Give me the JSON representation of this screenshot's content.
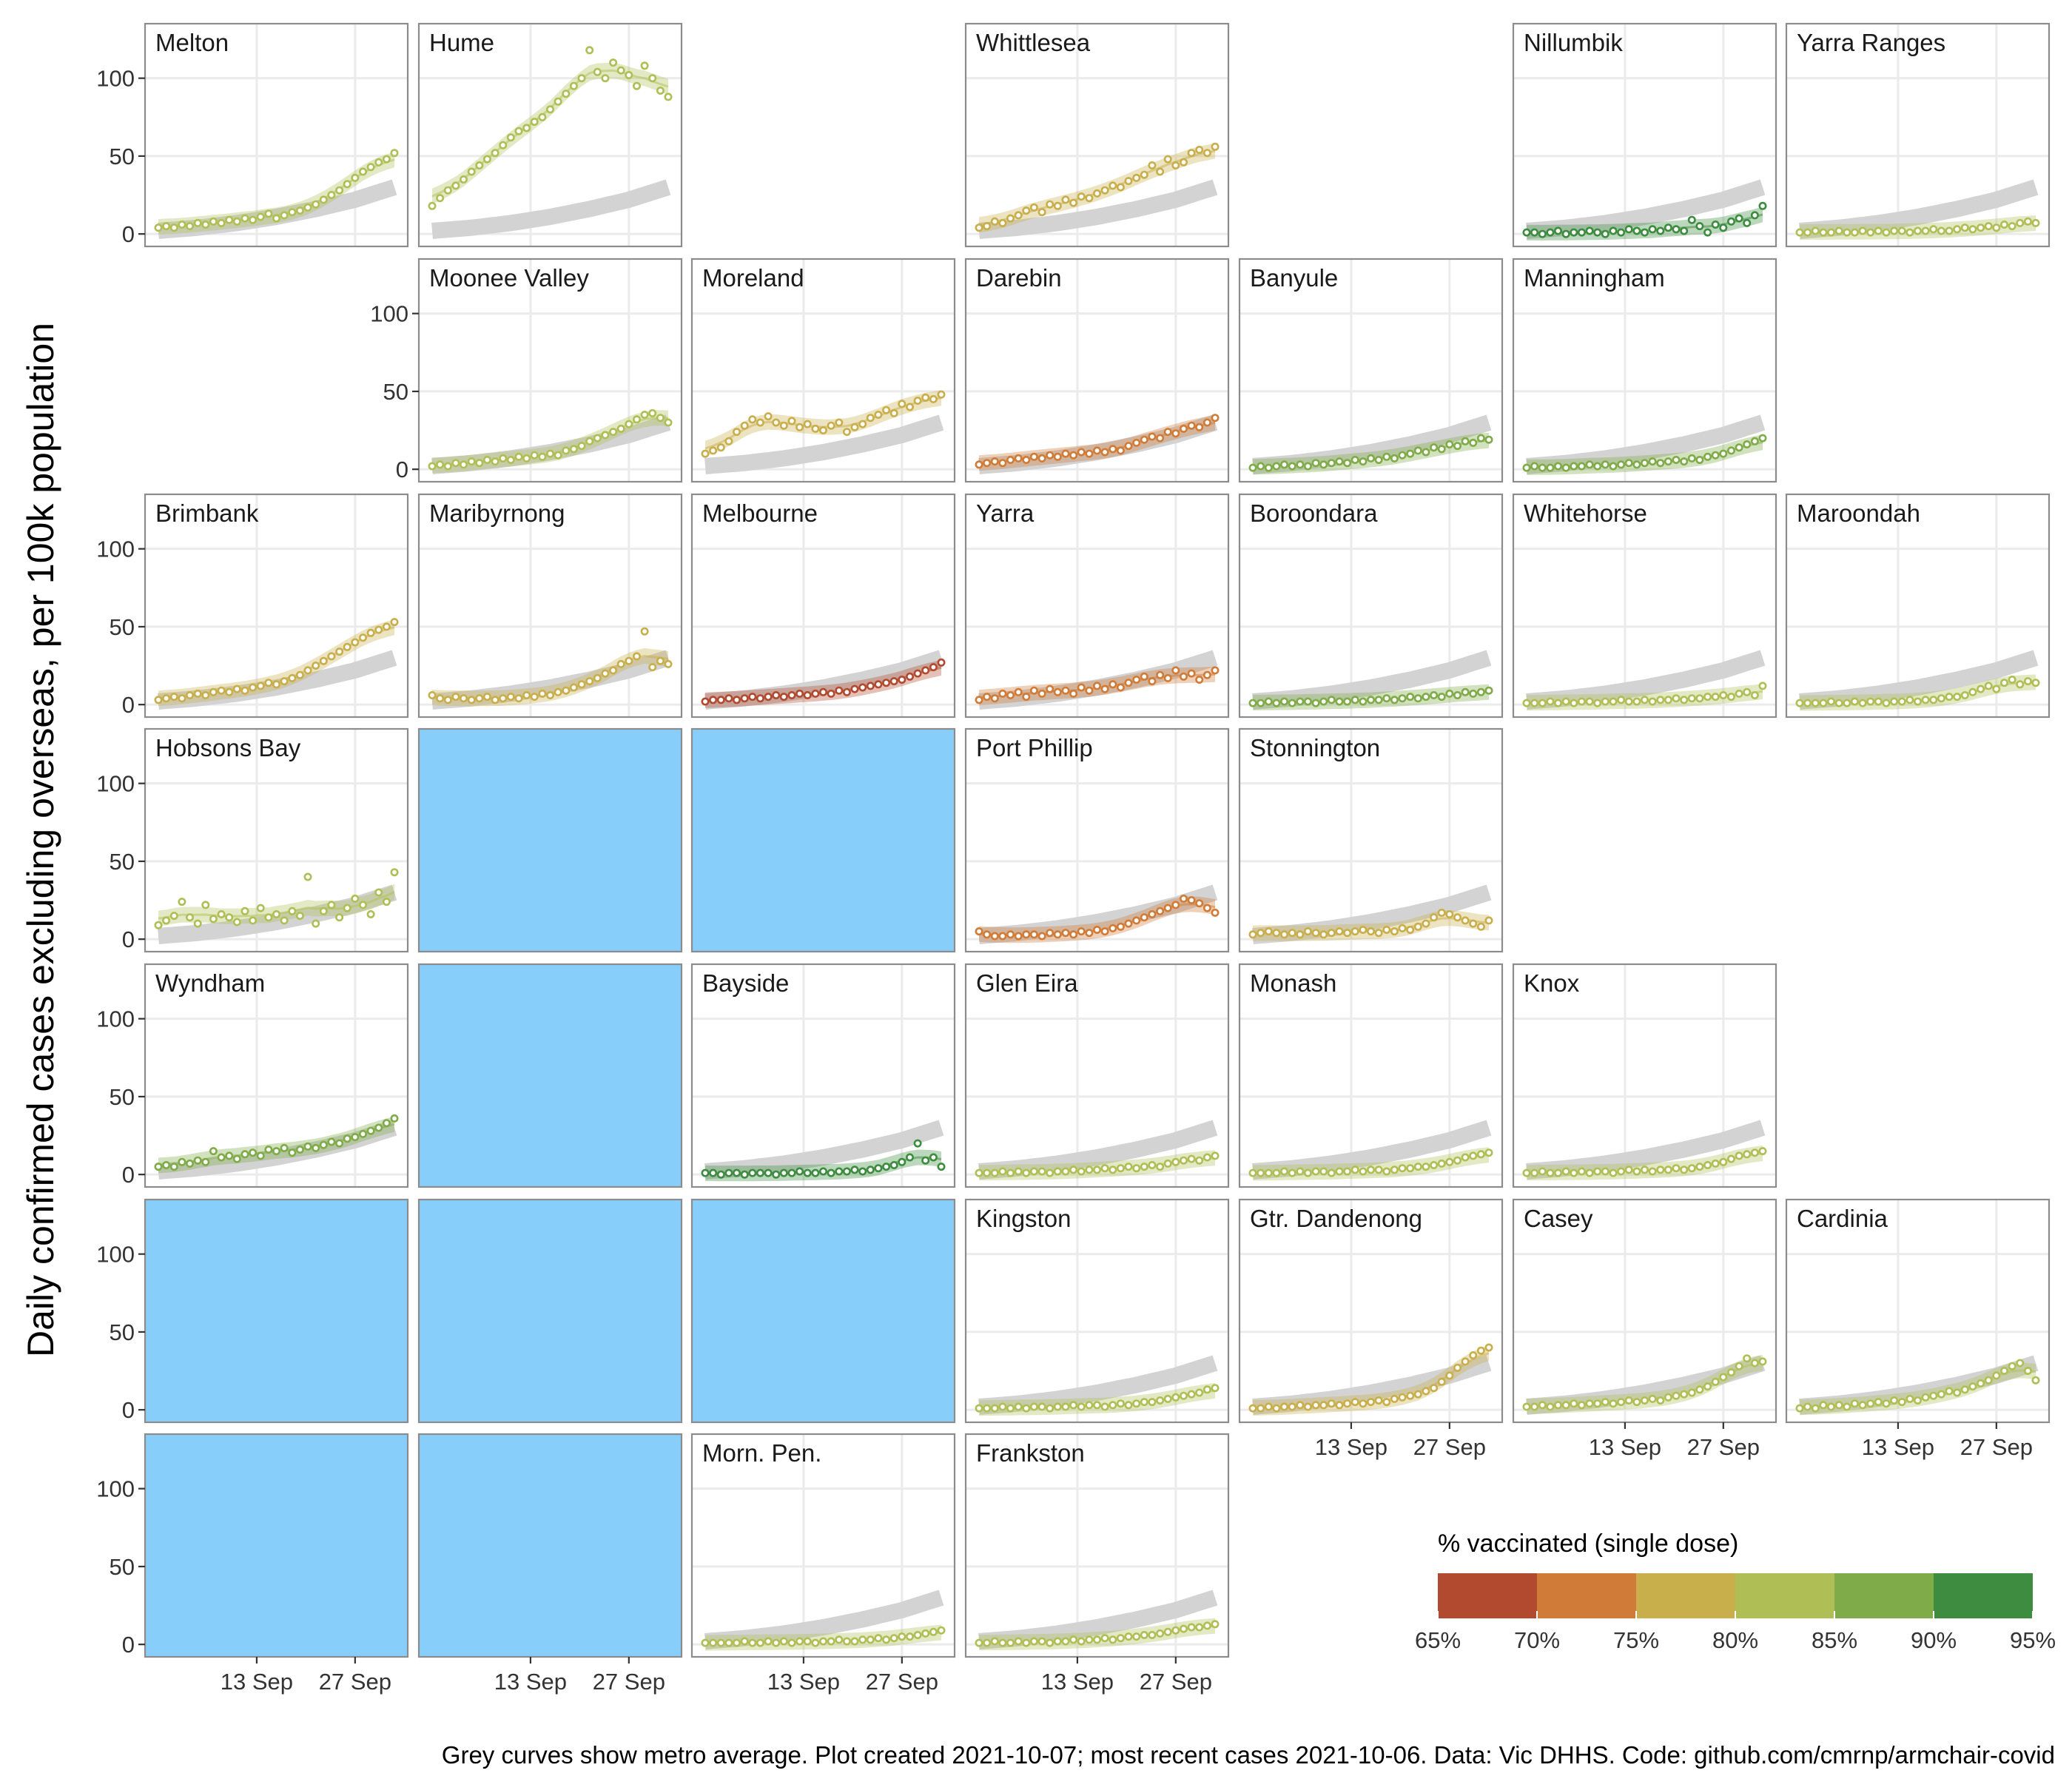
{
  "y_axis_title": "Daily confirmed cases excluding overseas, per 100k population",
  "caption": "Grey curves show metro average. Plot created 2021-10-07; most recent cases 2021-10-06. Data: Vic DHHS. Code: github.com/cmrnp/armchair-covid",
  "colors": {
    "panel_border": "#8c8c8c",
    "grid": "#ebebeb",
    "metro_curve": "#d3d3d3",
    "empty_tile": "#87cefa",
    "axis_text": "#333333"
  },
  "legend": {
    "title": "% vaccinated (single dose)",
    "breaks": [
      "65%",
      "70%",
      "75%",
      "80%",
      "85%",
      "90%",
      "95%"
    ],
    "colors": [
      "#b24a30",
      "#d07c38",
      "#c9ae4c",
      "#afbf55",
      "#7fab48",
      "#3d8c40"
    ]
  },
  "chart_data": {
    "type": "scatter",
    "layout": "geofacet small multiples with LOESS smooth per panel",
    "xlabel": "",
    "ylabel": "Daily confirmed cases excluding overseas, per 100k population",
    "x_ticks": [
      "13 Sep",
      "27 Sep"
    ],
    "y_ticks": [
      0,
      50,
      100
    ],
    "ylim": [
      0,
      135
    ],
    "xlim": [
      "2021-08-30",
      "2021-10-06"
    ],
    "grid": true,
    "metro_average": [
      2,
      4,
      7,
      11,
      16,
      22,
      30
    ],
    "panels": [
      {
        "name": "Melton",
        "row": 0,
        "col": 0,
        "color": "#afbf55",
        "values": [
          4,
          5,
          4,
          6,
          5,
          7,
          6,
          8,
          7,
          9,
          8,
          10,
          9,
          11,
          13,
          10,
          12,
          14,
          15,
          17,
          19,
          22,
          25,
          28,
          32,
          36,
          40,
          43,
          46,
          48,
          52
        ]
      },
      {
        "name": "Hume",
        "row": 0,
        "col": 1,
        "color": "#afbf55",
        "values": [
          18,
          23,
          28,
          31,
          35,
          40,
          44,
          48,
          52,
          57,
          62,
          66,
          68,
          72,
          75,
          80,
          85,
          90,
          95,
          100,
          118,
          104,
          100,
          110,
          105,
          102,
          95,
          108,
          100,
          92,
          88
        ]
      },
      {
        "name": "Whittlesea",
        "row": 0,
        "col": 3,
        "color": "#c9ae4c",
        "values": [
          4,
          5,
          8,
          7,
          10,
          12,
          15,
          17,
          14,
          19,
          18,
          22,
          20,
          24,
          23,
          26,
          28,
          31,
          30,
          34,
          36,
          38,
          44,
          40,
          48,
          44,
          46,
          52,
          54,
          52,
          56
        ]
      },
      {
        "name": "Nillumbik",
        "row": 0,
        "col": 5,
        "color": "#3d8c40",
        "values": [
          1,
          1,
          0,
          1,
          2,
          0,
          1,
          1,
          2,
          1,
          0,
          2,
          1,
          3,
          2,
          1,
          3,
          2,
          4,
          3,
          2,
          9,
          5,
          1,
          6,
          4,
          8,
          10,
          7,
          12,
          18
        ]
      },
      {
        "name": "Yarra Ranges",
        "row": 0,
        "col": 6,
        "color": "#afbf55",
        "values": [
          1,
          1,
          2,
          1,
          1,
          2,
          1,
          1,
          2,
          1,
          2,
          1,
          2,
          2,
          1,
          2,
          2,
          3,
          2,
          2,
          3,
          4,
          3,
          4,
          5,
          4,
          6,
          5,
          7,
          8,
          7
        ]
      },
      {
        "name": "Moonee Valley",
        "row": 1,
        "col": 1,
        "color": "#afbf55",
        "values": [
          2,
          3,
          2,
          4,
          3,
          5,
          4,
          6,
          5,
          7,
          6,
          8,
          7,
          9,
          8,
          10,
          9,
          12,
          13,
          15,
          18,
          20,
          22,
          24,
          26,
          29,
          32,
          35,
          36,
          33,
          30
        ]
      },
      {
        "name": "Moreland",
        "row": 1,
        "col": 2,
        "color": "#c9ae4c",
        "values": [
          10,
          12,
          14,
          18,
          24,
          28,
          32,
          30,
          34,
          30,
          28,
          31,
          27,
          29,
          26,
          25,
          28,
          30,
          24,
          27,
          29,
          33,
          35,
          38,
          36,
          42,
          40,
          44,
          46,
          45,
          48
        ]
      },
      {
        "name": "Darebin",
        "row": 1,
        "col": 3,
        "color": "#d07c38",
        "values": [
          3,
          4,
          5,
          4,
          6,
          7,
          6,
          8,
          7,
          9,
          8,
          10,
          9,
          11,
          10,
          12,
          11,
          13,
          12,
          15,
          17,
          19,
          21,
          20,
          24,
          23,
          26,
          28,
          27,
          30,
          33
        ]
      },
      {
        "name": "Banyule",
        "row": 2,
        "col": 4,
        "color": "#7fab48",
        "values": [
          1,
          2,
          1,
          2,
          3,
          2,
          3,
          2,
          4,
          3,
          4,
          5,
          4,
          6,
          5,
          7,
          6,
          8,
          7,
          9,
          10,
          12,
          11,
          14,
          13,
          16,
          15,
          18,
          17,
          20,
          19
        ],
        "row_offset": -1
      },
      {
        "name": "Manningham",
        "row": 1,
        "col": 5,
        "color": "#7fab48",
        "values": [
          1,
          2,
          1,
          1,
          2,
          1,
          2,
          2,
          3,
          2,
          3,
          2,
          3,
          4,
          3,
          4,
          5,
          4,
          5,
          6,
          5,
          7,
          6,
          8,
          9,
          10,
          12,
          14,
          16,
          18,
          20
        ]
      },
      {
        "name": "Brimbank",
        "row": 2,
        "col": 0,
        "color": "#c9ae4c",
        "values": [
          3,
          4,
          5,
          4,
          6,
          7,
          6,
          8,
          9,
          8,
          10,
          9,
          11,
          12,
          14,
          13,
          15,
          17,
          19,
          22,
          25,
          28,
          31,
          34,
          37,
          40,
          43,
          46,
          48,
          50,
          53
        ]
      },
      {
        "name": "Maribyrnong",
        "row": 2,
        "col": 1,
        "color": "#c9ae4c",
        "values": [
          6,
          4,
          3,
          5,
          4,
          3,
          4,
          5,
          3,
          4,
          5,
          4,
          6,
          5,
          7,
          6,
          8,
          9,
          11,
          13,
          15,
          17,
          20,
          22,
          26,
          28,
          31,
          47,
          24,
          28,
          26
        ]
      },
      {
        "name": "Melbourne",
        "row": 2,
        "col": 2,
        "color": "#b24a30",
        "values": [
          2,
          3,
          3,
          4,
          3,
          4,
          5,
          4,
          5,
          6,
          5,
          6,
          7,
          6,
          7,
          8,
          7,
          9,
          8,
          10,
          11,
          12,
          13,
          14,
          15,
          16,
          18,
          20,
          22,
          24,
          27
        ]
      },
      {
        "name": "Yarra",
        "row": 2,
        "col": 3,
        "color": "#d07c38",
        "values": [
          3,
          5,
          4,
          7,
          6,
          8,
          5,
          9,
          7,
          10,
          8,
          9,
          7,
          11,
          9,
          12,
          10,
          13,
          11,
          14,
          16,
          18,
          15,
          19,
          17,
          22,
          18,
          20,
          16,
          19,
          22
        ]
      },
      {
        "name": "Boroondara",
        "row": 2,
        "col": 4,
        "color": "#7fab48",
        "values": [
          1,
          1,
          2,
          1,
          2,
          1,
          2,
          2,
          1,
          2,
          3,
          2,
          2,
          3,
          2,
          3,
          3,
          4,
          3,
          4,
          5,
          4,
          5,
          6,
          5,
          7,
          6,
          8,
          7,
          8,
          9
        ]
      },
      {
        "name": "Whitehorse",
        "row": 2,
        "col": 5,
        "color": "#afbf55",
        "values": [
          1,
          1,
          1,
          2,
          1,
          2,
          1,
          2,
          2,
          1,
          2,
          2,
          3,
          2,
          2,
          3,
          2,
          3,
          3,
          4,
          3,
          4,
          4,
          5,
          5,
          6,
          5,
          7,
          8,
          6,
          12
        ]
      },
      {
        "name": "Maroondah",
        "row": 2,
        "col": 6,
        "color": "#afbf55",
        "values": [
          1,
          1,
          1,
          1,
          2,
          1,
          1,
          2,
          1,
          2,
          2,
          1,
          2,
          2,
          3,
          2,
          3,
          3,
          4,
          5,
          5,
          6,
          8,
          10,
          12,
          10,
          14,
          16,
          13,
          15,
          14
        ]
      },
      {
        "name": "Hobsons Bay",
        "row": 3,
        "col": 0,
        "color": "#afbf55",
        "values": [
          9,
          12,
          15,
          24,
          14,
          10,
          22,
          13,
          16,
          14,
          11,
          18,
          12,
          20,
          14,
          16,
          12,
          18,
          15,
          40,
          10,
          18,
          22,
          14,
          20,
          26,
          22,
          16,
          30,
          24,
          43
        ]
      },
      {
        "name": "Port Phillip",
        "row": 3,
        "col": 3,
        "color": "#d07c38",
        "values": [
          5,
          3,
          2,
          2,
          3,
          2,
          3,
          3,
          2,
          4,
          3,
          4,
          3,
          5,
          4,
          6,
          5,
          7,
          8,
          10,
          12,
          14,
          16,
          18,
          20,
          22,
          26,
          25,
          23,
          20,
          17
        ]
      },
      {
        "name": "Stonnington",
        "row": 3,
        "col": 4,
        "color": "#c9ae4c",
        "values": [
          3,
          4,
          5,
          4,
          3,
          4,
          3,
          5,
          4,
          3,
          4,
          5,
          4,
          5,
          6,
          5,
          4,
          6,
          5,
          7,
          6,
          8,
          10,
          14,
          17,
          16,
          14,
          12,
          10,
          8,
          12
        ]
      },
      {
        "name": "Wyndham",
        "row": 4,
        "col": 0,
        "color": "#7fab48",
        "values": [
          5,
          6,
          5,
          8,
          7,
          9,
          8,
          15,
          11,
          12,
          10,
          13,
          14,
          12,
          16,
          15,
          17,
          14,
          16,
          18,
          17,
          19,
          21,
          20,
          23,
          24,
          26,
          28,
          30,
          33,
          36
        ]
      },
      {
        "name": "Bayside",
        "row": 4,
        "col": 2,
        "color": "#3d8c40",
        "values": [
          1,
          1,
          0,
          1,
          1,
          0,
          1,
          1,
          1,
          0,
          1,
          1,
          2,
          1,
          1,
          2,
          1,
          2,
          2,
          3,
          2,
          3,
          4,
          5,
          6,
          8,
          11,
          20,
          9,
          11,
          5
        ]
      },
      {
        "name": "Glen Eira",
        "row": 4,
        "col": 3,
        "color": "#afbf55",
        "values": [
          1,
          1,
          1,
          2,
          1,
          2,
          1,
          2,
          2,
          1,
          2,
          2,
          3,
          2,
          3,
          3,
          4,
          3,
          4,
          5,
          4,
          5,
          6,
          5,
          7,
          8,
          9,
          10,
          9,
          11,
          12
        ]
      },
      {
        "name": "Monash",
        "row": 4,
        "col": 4,
        "color": "#afbf55",
        "values": [
          1,
          1,
          1,
          1,
          2,
          1,
          2,
          1,
          2,
          2,
          1,
          2,
          2,
          3,
          2,
          3,
          3,
          2,
          3,
          4,
          4,
          5,
          5,
          6,
          7,
          8,
          9,
          11,
          12,
          13,
          14
        ]
      },
      {
        "name": "Knox",
        "row": 4,
        "col": 5,
        "color": "#afbf55",
        "values": [
          1,
          1,
          2,
          1,
          1,
          2,
          1,
          2,
          1,
          2,
          2,
          1,
          2,
          3,
          2,
          3,
          2,
          3,
          3,
          4,
          3,
          4,
          5,
          6,
          7,
          8,
          10,
          12,
          13,
          14,
          15
        ]
      },
      {
        "name": "Kingston",
        "row": 5,
        "col": 3,
        "color": "#afbf55",
        "values": [
          1,
          1,
          1,
          2,
          1,
          2,
          1,
          2,
          2,
          1,
          2,
          2,
          3,
          2,
          3,
          3,
          2,
          3,
          4,
          3,
          4,
          5,
          5,
          6,
          7,
          8,
          9,
          10,
          11,
          13,
          14
        ]
      },
      {
        "name": "Gtr. Dandenong",
        "row": 5,
        "col": 4,
        "color": "#c9ae4c",
        "values": [
          1,
          1,
          2,
          1,
          2,
          2,
          3,
          2,
          3,
          3,
          4,
          3,
          4,
          5,
          4,
          5,
          6,
          5,
          7,
          8,
          9,
          10,
          12,
          14,
          18,
          22,
          27,
          31,
          35,
          38,
          40
        ]
      },
      {
        "name": "Casey",
        "row": 5,
        "col": 5,
        "color": "#afbf55",
        "values": [
          2,
          2,
          3,
          2,
          3,
          3,
          4,
          3,
          4,
          4,
          5,
          4,
          5,
          6,
          5,
          6,
          7,
          6,
          8,
          9,
          10,
          11,
          13,
          15,
          18,
          21,
          24,
          28,
          33,
          30,
          31
        ]
      },
      {
        "name": "Cardinia",
        "row": 5,
        "col": 6,
        "color": "#afbf55",
        "values": [
          1,
          2,
          1,
          3,
          2,
          3,
          2,
          4,
          3,
          4,
          5,
          4,
          6,
          5,
          7,
          6,
          8,
          9,
          10,
          12,
          11,
          13,
          15,
          17,
          19,
          22,
          25,
          28,
          30,
          25,
          19
        ]
      },
      {
        "name": "Morn. Pen.",
        "row": 6,
        "col": 2,
        "color": "#afbf55",
        "values": [
          1,
          1,
          1,
          1,
          1,
          2,
          1,
          1,
          2,
          1,
          2,
          1,
          2,
          2,
          1,
          2,
          2,
          3,
          2,
          2,
          3,
          3,
          4,
          3,
          4,
          5,
          5,
          6,
          7,
          8,
          9
        ]
      },
      {
        "name": "Frankston",
        "row": 6,
        "col": 3,
        "color": "#afbf55",
        "values": [
          1,
          1,
          2,
          1,
          1,
          2,
          1,
          2,
          2,
          1,
          2,
          2,
          3,
          2,
          3,
          3,
          4,
          3,
          4,
          5,
          5,
          6,
          6,
          7,
          8,
          9,
          10,
          11,
          11,
          12,
          13
        ]
      }
    ],
    "empty_tiles": [
      [
        3,
        1
      ],
      [
        3,
        2
      ],
      [
        4,
        1
      ],
      [
        5,
        0
      ],
      [
        5,
        1
      ],
      [
        5,
        2
      ],
      [
        6,
        0
      ],
      [
        6,
        1
      ]
    ]
  }
}
